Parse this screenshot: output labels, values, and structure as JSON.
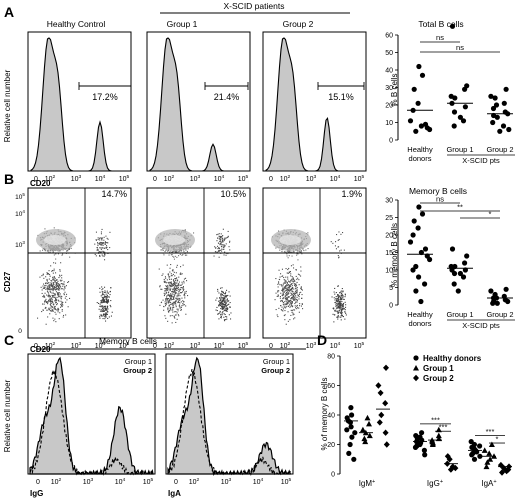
{
  "panelA": {
    "letter": "A",
    "header_xscid": "X-SCID patients",
    "histos": [
      {
        "title": "Healthy Control",
        "percent": "17.2%"
      },
      {
        "title": "Group 1",
        "percent": "21.4%"
      },
      {
        "title": "Group 2",
        "percent": "15.1%"
      }
    ],
    "ylabel": "Relative cell number",
    "xlabel": "CD20",
    "ticks": [
      "0",
      "10",
      "10",
      "10",
      "10"
    ],
    "tick_sups": [
      "",
      "2",
      "3",
      "4",
      "5"
    ]
  },
  "panelB": {
    "letter": "B",
    "dots": [
      {
        "percent": "14.7%"
      },
      {
        "percent": "10.5%"
      },
      {
        "percent": "1.9%"
      }
    ],
    "ylabel": "CD27",
    "xlabel": "CD20",
    "xticks": [
      "0",
      "10",
      "10",
      "10",
      "10"
    ],
    "xtick_sups": [
      "",
      "2",
      "3",
      "4",
      "5"
    ],
    "yticks": [
      "10",
      "10",
      "10",
      "0"
    ],
    "ytick_sups": [
      "5",
      "4",
      "3",
      ""
    ]
  },
  "panelC": {
    "letter": "C",
    "title": "Memory B cells",
    "ylabel": "Relative cell number",
    "legend_g1": "Group 1",
    "legend_g2": "Group 2",
    "xlabel_left": "IgG",
    "xlabel_right": "IgA",
    "ticks": [
      "0",
      "10",
      "10",
      "10",
      "10"
    ],
    "tick_sups": [
      "",
      "2",
      "3",
      "4",
      "5"
    ]
  },
  "panelD": {
    "letter": "D",
    "ylabel": "% of memory B cells",
    "legend": [
      "Healthy donors",
      "Group 1",
      "Group 2"
    ],
    "categories": [
      "IgM",
      "IgG",
      "IgA"
    ],
    "sig_labels": [
      "***",
      "***",
      "***",
      "*"
    ]
  },
  "scatterA": {
    "title": "Total B cells",
    "ylabel": "% B cells",
    "cat_labels": [
      "Healthy",
      "donors",
      "Group 1",
      "Group 2",
      "X-SCID pts"
    ],
    "ns": [
      "ns",
      "ns"
    ]
  },
  "scatterB": {
    "title": "Memory B cells",
    "ylabel": "% memory B cells",
    "cat_labels": [
      "Healthy",
      "donors",
      "Group 1",
      "Group 2",
      "X-SCID pts"
    ],
    "sig": [
      "ns",
      "**",
      "*"
    ]
  },
  "chart_data": [
    {
      "type": "scatter",
      "title": "Total B cells",
      "ylabel": "% B cells",
      "categories": [
        "Healthy donors",
        "Group 1",
        "Group 2"
      ],
      "ylim": [
        0,
        60
      ],
      "yticks": [
        0,
        10,
        20,
        30,
        40,
        50,
        60
      ],
      "series": [
        {
          "values": [
            42,
            37,
            29,
            21,
            17,
            11,
            9,
            8,
            7,
            6,
            5
          ]
        },
        {
          "values": [
            65,
            31,
            29,
            25,
            24,
            21,
            19,
            16,
            13,
            11,
            8
          ]
        },
        {
          "values": [
            29,
            25,
            24,
            21,
            20,
            18,
            16,
            15,
            14,
            13,
            10,
            8,
            6,
            5
          ]
        }
      ],
      "means": [
        17,
        21,
        15
      ]
    },
    {
      "type": "scatter",
      "title": "Memory B cells",
      "ylabel": "% memory B cells",
      "categories": [
        "Healthy donors",
        "Group 1",
        "Group 2"
      ],
      "ylim": [
        0,
        30
      ],
      "yticks": [
        0,
        5,
        10,
        15,
        20,
        25,
        30
      ],
      "series": [
        {
          "values": [
            28,
            26,
            24,
            22,
            20,
            18,
            16,
            15,
            14,
            13,
            11,
            10,
            8,
            6,
            4,
            1
          ]
        },
        {
          "values": [
            16,
            14,
            12,
            11,
            11,
            10,
            10,
            9,
            9,
            8,
            6,
            4
          ]
        },
        {
          "values": [
            4.5,
            4,
            3,
            2.5,
            2,
            2,
            1.5,
            1,
            1,
            0.5,
            0.5
          ]
        }
      ],
      "means": [
        14.5,
        10.5,
        2
      ]
    },
    {
      "type": "scatter",
      "ylabel": "% of memory B cells",
      "categories": [
        "IgM+",
        "IgG+",
        "IgA+"
      ],
      "ylim": [
        0,
        80
      ],
      "yticks": [
        0,
        20,
        40,
        60,
        80
      ],
      "series": [
        {
          "name": "Healthy donors",
          "marker": "circle",
          "values": [
            [
              45,
              40,
              38,
              36,
              35,
              32,
              30,
              28,
              25,
              20,
              14,
              10
            ],
            [
              28,
              26,
              25,
              24,
              23,
              22,
              21,
              20,
              19,
              18,
              16,
              13
            ],
            [
              22,
              20,
              19,
              18,
              17,
              16,
              15,
              14,
              13,
              12,
              10
            ]
          ]
        },
        {
          "name": "Group 1",
          "marker": "triangle",
          "values": [
            [
              38,
              34,
              30,
              28,
              26,
              24,
              22
            ],
            [
              30,
              26,
              24,
              23,
              22,
              21,
              20
            ],
            [
              20,
              16,
              14,
              12,
              10,
              8,
              5
            ]
          ]
        },
        {
          "name": "Group 2",
          "marker": "diamond",
          "values": [
            [
              72,
              60,
              55,
              48,
              40,
              35,
              28,
              20
            ],
            [
              12,
              10,
              7,
              5,
              4,
              3
            ],
            [
              6,
              5,
              4,
              3,
              2,
              1
            ]
          ]
        }
      ],
      "means": [
        [
          36,
          28,
          44
        ],
        [
          22,
          23,
          7
        ],
        [
          16,
          12,
          5
        ]
      ]
    }
  ]
}
